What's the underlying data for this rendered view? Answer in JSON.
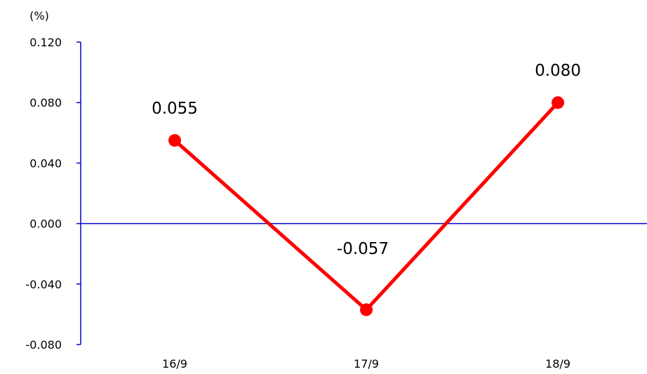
{
  "chart_data": {
    "type": "line",
    "unit_label": "(%)",
    "categories": [
      "16/9",
      "17/9",
      "18/9"
    ],
    "values": [
      0.055,
      -0.057,
      0.08
    ],
    "data_labels": [
      "0.055",
      "-0.057",
      "0.080"
    ],
    "ylim": [
      -0.08,
      0.12
    ],
    "yticks": [
      0.12,
      0.08,
      0.04,
      0.0,
      -0.04,
      -0.08
    ],
    "ytick_labels": [
      "0.120",
      "0.080",
      "0.040",
      "0.000",
      "-0.040",
      "-0.080"
    ],
    "grid": false,
    "legend": "none",
    "colors": {
      "series": "#ff0000",
      "axis": "#0000cc"
    }
  }
}
